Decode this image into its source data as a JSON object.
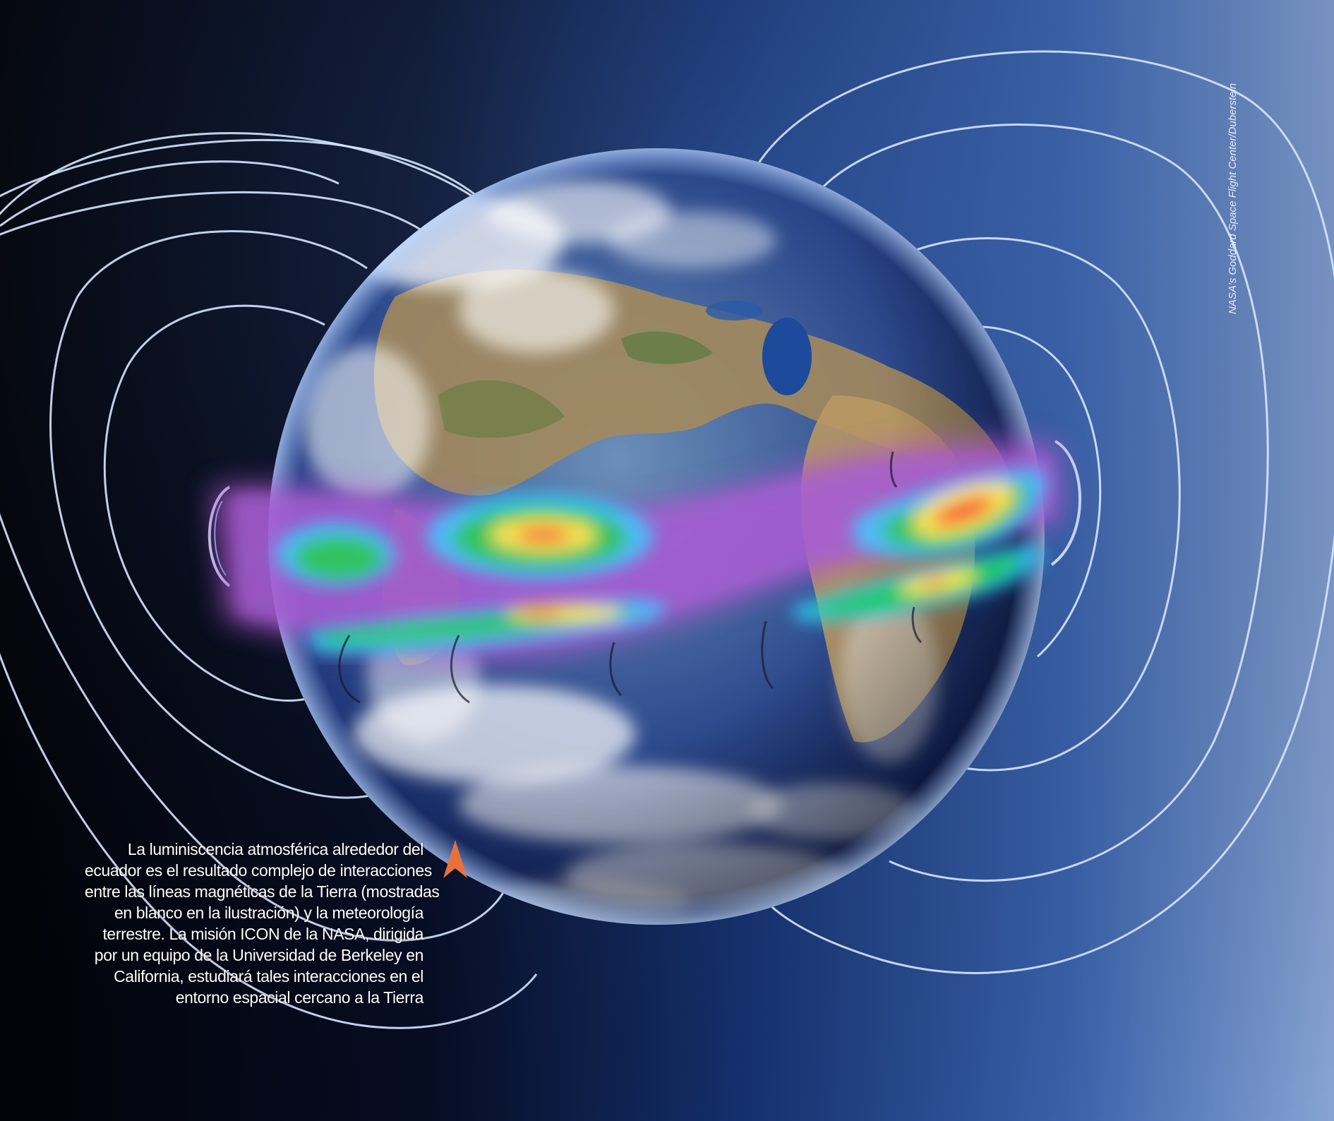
{
  "caption": {
    "lines": [
      "La luminiscencia atmosférica alrededor del",
      "ecuador es el resultado complejo de interacciones",
      "entre las líneas magnéticas de la Tierra (mostradas",
      "en blanco en la ilustración) y la meteorología",
      "terrestre. La misión ICON de la NASA, dirigida",
      "por un equipo de la Universidad de Berkeley en",
      "California, estudiará tales interacciones en el",
      "entorno espacial cercano a la Tierra"
    ]
  },
  "credit": "NASA's Goddard Space Flight Center/Duberstein",
  "colors": {
    "space_dark": "#02040a",
    "space_blue": "#1f4a9a",
    "space_light": "#8aa6d6",
    "field_lines": "#cfe2ff",
    "arrow": "#e8703a",
    "ocean": "#233a86",
    "land": "#a88d5e"
  },
  "icons": {
    "arrow": "arrow-up-icon"
  }
}
